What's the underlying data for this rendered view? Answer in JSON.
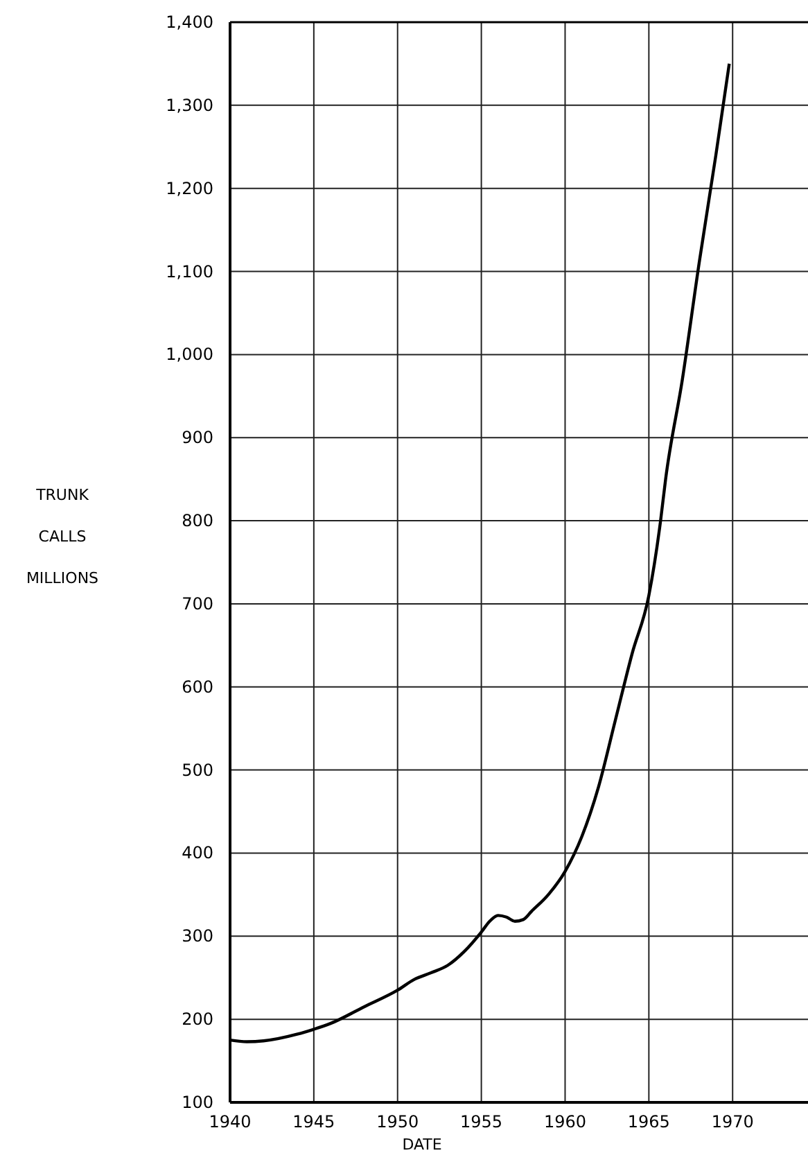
{
  "chart_data": {
    "type": "line",
    "xlabel": "DATE",
    "ylabel": "TRUNK\nCALLS\nMILLIONS",
    "xlim": [
      1940,
      1974.5
    ],
    "xticks": [
      1940,
      1945,
      1950,
      1955,
      1960,
      1965,
      1970
    ],
    "ylim": [
      100,
      1400
    ],
    "yticks": [
      {
        "value": 100,
        "label": "100"
      },
      {
        "value": 200,
        "label": "200"
      },
      {
        "value": 300,
        "label": "300"
      },
      {
        "value": 400,
        "label": "400"
      },
      {
        "value": 500,
        "label": "500"
      },
      {
        "value": 600,
        "label": "600"
      },
      {
        "value": 700,
        "label": "700"
      },
      {
        "value": 800,
        "label": "800"
      },
      {
        "value": 900,
        "label": "900"
      },
      {
        "value": 1000,
        "label": "1,000"
      },
      {
        "value": 1100,
        "label": "1,100"
      },
      {
        "value": 1200,
        "label": "1,200"
      },
      {
        "value": 1300,
        "label": "1,300"
      },
      {
        "value": 1400,
        "label": "1,400"
      }
    ],
    "grid": true,
    "marker": "none",
    "line_style": "solid",
    "series": [
      {
        "color": "#000000",
        "x": [
          1940,
          1941,
          1942,
          1944,
          1945,
          1946,
          1948,
          1950,
          1951,
          1952,
          1953,
          1954,
          1955,
          1955.5,
          1956,
          1956.5,
          1957,
          1957.5,
          1958,
          1959,
          1960,
          1961,
          1962,
          1963,
          1964,
          1965,
          1965.7,
          1966,
          1967,
          1968,
          1969,
          1969.8
        ],
        "values": [
          175,
          173,
          174,
          182,
          188,
          195,
          215,
          235,
          248,
          256,
          265,
          282,
          305,
          318,
          325,
          323,
          318,
          320,
          330,
          350,
          378,
          420,
          480,
          560,
          640,
          710,
          800,
          850,
          970,
          1110,
          1240,
          1350
        ]
      }
    ]
  }
}
